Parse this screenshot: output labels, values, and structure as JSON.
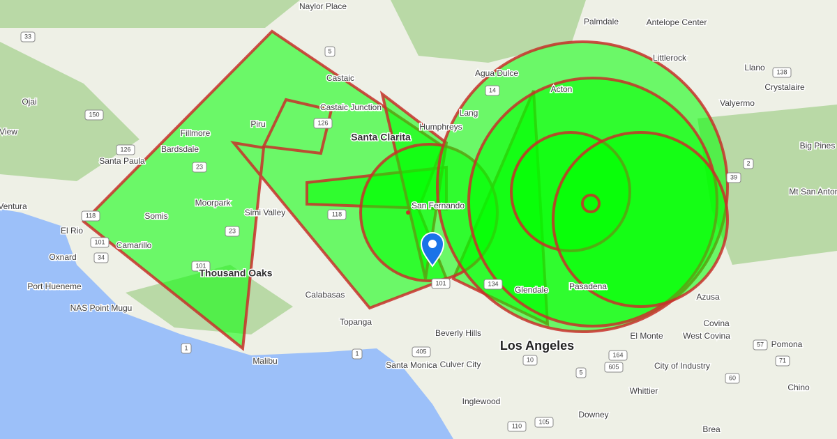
{
  "map": {
    "places": [
      "Naylor Place",
      "Palmdale",
      "Antelope Center",
      "Littlerock",
      "Llano",
      "Crystalaire",
      "Valyermo",
      "Agua Dulce",
      "Acton",
      "Castaic",
      "Castaic Junction",
      "Lang",
      "Humphreys",
      "Santa Clarita",
      "Piru",
      "Fillmore",
      "Bardsdale",
      "Santa Paula",
      "Ojai",
      "View",
      "Ventura",
      "El Rio",
      "Oxnard",
      "Port Hueneme",
      "NAS Point Mugu",
      "Camarillo",
      "Somis",
      "Moorpark",
      "Simi Valley",
      "Thousand Oaks",
      "Calabasas",
      "Topanga",
      "Malibu",
      "Santa Monica",
      "Culver City",
      "Beverly Hills",
      "Los Angeles",
      "Inglewood",
      "Downey",
      "Whittier",
      "City of Industry",
      "El Monte",
      "West Covina",
      "Covina",
      "Azusa",
      "Pomona",
      "Chino",
      "Brea",
      "Big Pines",
      "Mt San Antonio",
      "San Fernando",
      "Glendale",
      "Pasadena"
    ],
    "road_shields": [
      "5",
      "33",
      "150",
      "126",
      "126",
      "118",
      "118",
      "23",
      "23",
      "101",
      "101",
      "34",
      "1",
      "1",
      "405",
      "10",
      "110",
      "105",
      "605",
      "5",
      "164",
      "14",
      "138",
      "2",
      "39",
      "57",
      "60",
      "71",
      "101",
      "134"
    ]
  }
}
